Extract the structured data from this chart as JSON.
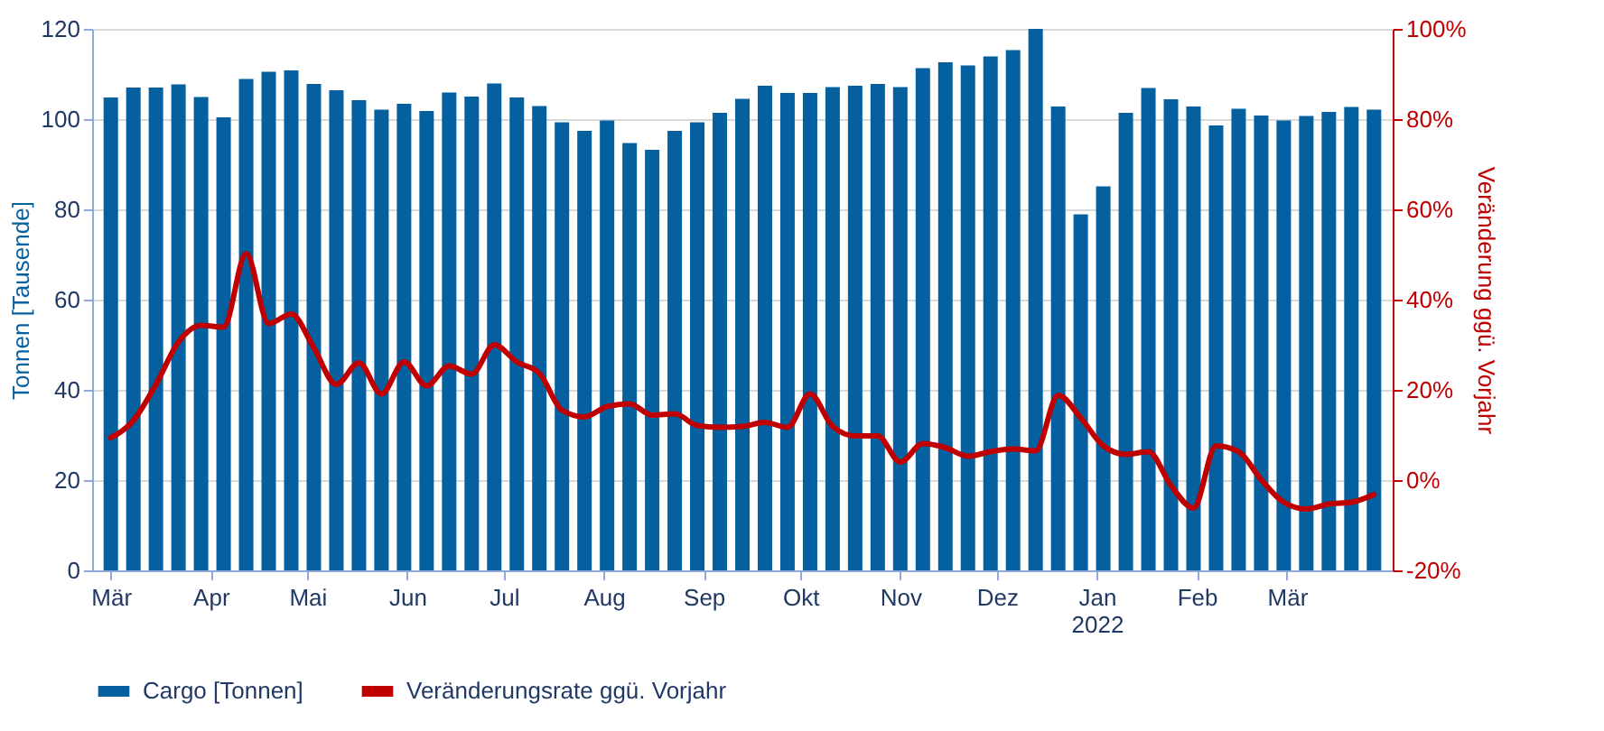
{
  "chart_data": {
    "type": "bar",
    "ylabel": "Tonnen [Tausende]",
    "y2label": "Veränderung ggü. Vorjahr",
    "x": [
      "2021-03-01",
      "2021-03-08",
      "2021-03-15",
      "2021-03-22",
      "2021-03-29",
      "2021-04-05",
      "2021-04-12",
      "2021-04-19",
      "2021-04-26",
      "2021-05-03",
      "2021-05-10",
      "2021-05-17",
      "2021-05-24",
      "2021-05-31",
      "2021-06-07",
      "2021-06-14",
      "2021-06-21",
      "2021-06-28",
      "2021-07-05",
      "2021-07-12",
      "2021-07-19",
      "2021-07-26",
      "2021-08-02",
      "2021-08-09",
      "2021-08-16",
      "2021-08-23",
      "2021-08-30",
      "2021-09-06",
      "2021-09-13",
      "2021-09-20",
      "2021-09-27",
      "2021-10-04",
      "2021-10-11",
      "2021-10-18",
      "2021-10-25",
      "2021-11-01",
      "2021-11-08",
      "2021-11-15",
      "2021-11-22",
      "2021-11-29",
      "2021-12-06",
      "2021-12-13",
      "2021-12-20",
      "2021-12-27",
      "2022-01-03",
      "2022-01-10",
      "2022-01-17",
      "2022-01-24",
      "2022-01-31",
      "2022-02-07",
      "2022-02-14",
      "2022-02-21",
      "2022-02-28",
      "2022-03-07",
      "2022-03-14",
      "2022-03-21",
      "2022-03-28"
    ],
    "xlim": [
      "2021-02-26",
      "2022-03-31"
    ],
    "xticks": [
      {
        "value": "2021-03-01",
        "label": "Mär"
      },
      {
        "value": "2021-04-01",
        "label": "Apr"
      },
      {
        "value": "2021-05-01",
        "label": "Mai"
      },
      {
        "value": "2021-06-01",
        "label": "Jun"
      },
      {
        "value": "2021-07-01",
        "label": "Jul"
      },
      {
        "value": "2021-08-01",
        "label": "Aug"
      },
      {
        "value": "2021-09-01",
        "label": "Sep"
      },
      {
        "value": "2021-10-01",
        "label": "Okt"
      },
      {
        "value": "2021-11-01",
        "label": "Nov"
      },
      {
        "value": "2021-12-01",
        "label": "Dez"
      },
      {
        "value": "2022-01-01",
        "label": "Jan\n2022"
      },
      {
        "value": "2022-02-01",
        "label": "Feb"
      },
      {
        "value": "2022-03-01",
        "label": "Mär"
      }
    ],
    "ylim": [
      0,
      120
    ],
    "yticks": [
      0,
      20,
      40,
      60,
      80,
      100,
      120
    ],
    "y2lim": [
      -20,
      100
    ],
    "y2ticks": [
      {
        "value": -20,
        "label": "-20%"
      },
      {
        "value": 0,
        "label": "0%"
      },
      {
        "value": 20,
        "label": "20%"
      },
      {
        "value": 40,
        "label": "40%"
      },
      {
        "value": 60,
        "label": "60%"
      },
      {
        "value": 80,
        "label": "80%"
      },
      {
        "value": 100,
        "label": "100%"
      }
    ],
    "grid": "y",
    "legend": "bottom",
    "series": [
      {
        "name": "Cargo [Tonnen]",
        "color": "#0560a0",
        "values": [
          104.8,
          107.0,
          107.0,
          107.7,
          104.9,
          100.4,
          108.9,
          110.5,
          110.8,
          107.8,
          106.4,
          104.2,
          102.1,
          103.4,
          101.8,
          105.9,
          105.0,
          107.9,
          104.8,
          102.9,
          99.3,
          97.4,
          99.7,
          94.7,
          93.2,
          97.4,
          99.3,
          101.4,
          104.5,
          107.4,
          105.8,
          105.8,
          107.1,
          107.4,
          107.8,
          107.1,
          111.3,
          112.6,
          111.9,
          113.9,
          115.3,
          120,
          102.8,
          78.9,
          85.1,
          101.4,
          106.9,
          104.4,
          102.8,
          98.6,
          102.3,
          100.8,
          99.7,
          100.7,
          101.6,
          102.7,
          102.1
        ]
      },
      {
        "name": "Veränderungsrate ggü. Vorjahr",
        "type": "line",
        "axis": "y2",
        "color": "#c00000",
        "line_style": "solid",
        "marker": "none",
        "values": [
          9.4,
          13.2,
          21.2,
          30.6,
          34.3,
          33.9,
          50.2,
          34.7,
          36.8,
          29.3,
          21.2,
          26.0,
          19.1,
          26.2,
          20.9,
          25.3,
          23.5,
          30.0,
          26.2,
          23.7,
          15.5,
          14.0,
          16.3,
          16.9,
          14.4,
          14.7,
          12.1,
          11.7,
          11.9,
          12.8,
          11.7,
          19.1,
          11.9,
          9.8,
          9.8,
          4.0,
          8.1,
          7.2,
          5.3,
          6.3,
          6.9,
          6.5,
          18.8,
          13.8,
          7.6,
          5.7,
          6.3,
          -1.2,
          -6.2,
          7.6,
          6.3,
          0.1,
          -4.9,
          -6.4,
          -5.3,
          -4.9,
          -3.2
        ]
      }
    ]
  }
}
